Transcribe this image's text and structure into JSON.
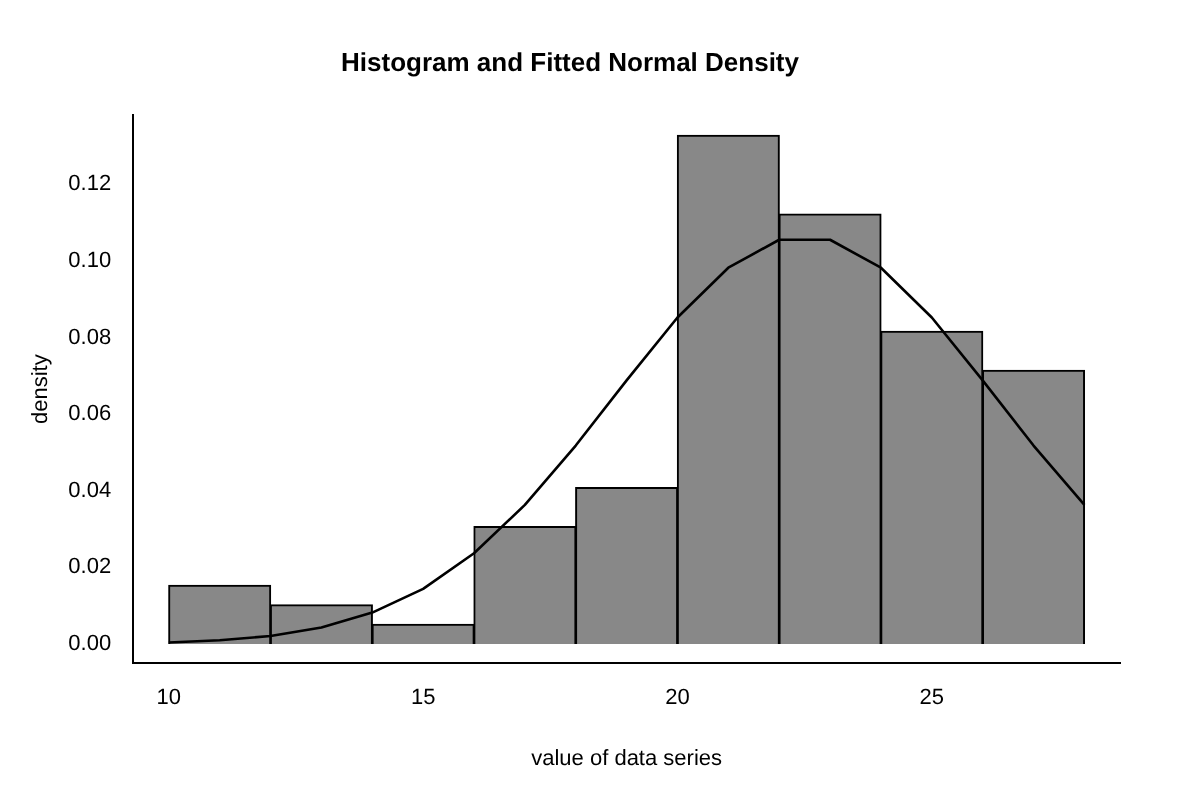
{
  "chart_data": {
    "type": "histogram",
    "title": "Histogram and Fitted Normal Density",
    "xlabel": "value of data series",
    "ylabel": "density",
    "bins": [
      10,
      12,
      14,
      16,
      18,
      20,
      22,
      24,
      26,
      28
    ],
    "values": [
      0.0153,
      0.0102,
      0.0051,
      0.0306,
      0.0408,
      0.1327,
      0.1122,
      0.0816,
      0.0714
    ],
    "color": "#888888",
    "series": [
      {
        "type": "line",
        "color": "#000000",
        "x": [
          10,
          11,
          12,
          13,
          14,
          15,
          16,
          17,
          18,
          19,
          20,
          21,
          22,
          23,
          24,
          25,
          26,
          27,
          28
        ],
        "values": [
          0.0004,
          0.001,
          0.0021,
          0.0043,
          0.0082,
          0.0144,
          0.0237,
          0.0363,
          0.0518,
          0.0688,
          0.0852,
          0.0982,
          0.1055,
          0.1055,
          0.0982,
          0.0852,
          0.0688,
          0.0518,
          0.0363
        ]
      }
    ],
    "xlim": [
      9.3,
      28.7
    ],
    "ylim": [
      -0.005,
      0.138
    ],
    "xticks": [
      10,
      15,
      20,
      25
    ],
    "yticks": [
      {
        "value": 0,
        "label": "0.00"
      },
      0.02,
      0.04,
      0.06,
      0.08,
      {
        "value": 0.1,
        "label": "0.10"
      },
      0.12
    ],
    "grid": false,
    "legend": false,
    "marker": "none",
    "line_style": "solid"
  }
}
